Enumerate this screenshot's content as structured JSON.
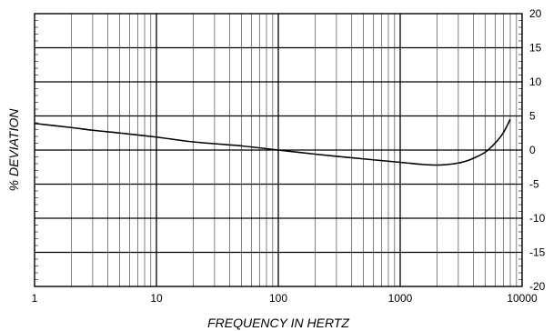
{
  "chart_data": {
    "type": "line",
    "title": "",
    "xlabel": "FREQUENCY IN HERTZ",
    "ylabel": "% DEVIATION",
    "x_scale": "log",
    "xlim": [
      1,
      10000
    ],
    "ylim": [
      -20,
      20
    ],
    "grid": true,
    "x_tick_labels": [
      "1",
      "10",
      "100",
      "1000",
      "10000"
    ],
    "y_tick_labels": [
      "20",
      "15",
      "10",
      "5",
      "0",
      "-5",
      "-10",
      "-15",
      "-20"
    ],
    "series": [
      {
        "x": [
          1,
          2,
          3,
          5,
          10,
          20,
          50,
          100,
          200,
          500,
          1000,
          1500,
          2000,
          2500,
          3000,
          3500,
          4000,
          5000,
          6000,
          7000,
          8000
        ],
        "y": [
          3.9,
          3.3,
          2.9,
          2.5,
          1.9,
          1.2,
          0.6,
          0.0,
          -0.6,
          -1.3,
          -1.8,
          -2.1,
          -2.2,
          -2.1,
          -1.9,
          -1.6,
          -1.2,
          -0.3,
          1.0,
          2.5,
          4.5
        ]
      }
    ]
  }
}
